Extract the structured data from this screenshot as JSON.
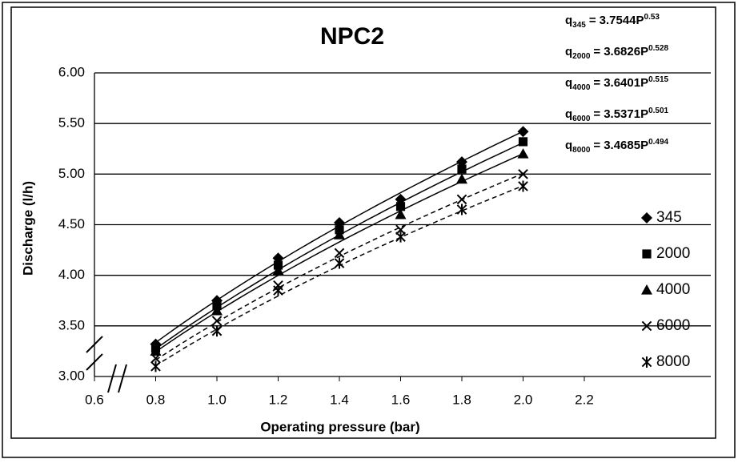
{
  "chart_data": {
    "type": "scatter",
    "title": "NPC2",
    "x_label": "Operating pressure (bar)",
    "y_label": "Discharge (l/h)",
    "x": [
      0.8,
      1.0,
      1.2,
      1.4,
      1.6,
      1.8,
      2.0
    ],
    "xlim": [
      0.6,
      2.2
    ],
    "xticks": [
      0.6,
      0.8,
      {
        "value": 1.0,
        "label": "1.0"
      },
      1.2,
      1.4,
      1.6,
      1.8,
      {
        "value": 2.0,
        "label": "2.0"
      },
      2.2
    ],
    "ylim": [
      3.0,
      6.0
    ],
    "yticks": [
      {
        "value": 3.0,
        "label": "3.00"
      },
      {
        "value": 3.5,
        "label": "3.50"
      },
      {
        "value": 4.0,
        "label": "4.00"
      },
      {
        "value": 4.5,
        "label": "4.50"
      },
      {
        "value": 5.0,
        "label": "5.00"
      },
      {
        "value": 5.5,
        "label": "5.50"
      },
      {
        "value": 6.0,
        "label": "6.00"
      }
    ],
    "grid": true,
    "legend": "right",
    "series": [
      {
        "name": "345",
        "color": "#000000",
        "marker": "diamond",
        "values": [
          3.32,
          3.75,
          4.17,
          4.52,
          4.75,
          5.12,
          5.42
        ]
      },
      {
        "name": "2000",
        "color": "#000000",
        "marker": "square",
        "values": [
          3.28,
          3.7,
          4.1,
          4.45,
          4.68,
          5.05,
          5.32
        ]
      },
      {
        "name": "4000",
        "color": "#000000",
        "marker": "triangle",
        "values": [
          3.25,
          3.65,
          4.05,
          4.4,
          4.6,
          4.95,
          5.2
        ]
      },
      {
        "name": "6000",
        "color": "#000000",
        "marker": "x",
        "values": [
          3.18,
          3.55,
          3.9,
          4.22,
          4.45,
          4.75,
          5.0
        ]
      },
      {
        "name": "8000",
        "color": "#000000",
        "marker": "star",
        "values": [
          3.1,
          3.45,
          3.85,
          4.12,
          4.38,
          4.65,
          4.88
        ]
      }
    ],
    "fits": [
      {
        "symbol": "q",
        "sign": "=",
        "coef": 3.7544,
        "var": "P",
        "exp": 0.53,
        "dashed": false
      },
      {
        "symbol": "q",
        "sign": "=",
        "coef": 3.6826,
        "var": "P",
        "exp": 0.528,
        "dashed": false
      },
      {
        "symbol": "q",
        "sign": "=",
        "coef": 3.6401,
        "var": "P",
        "exp": 0.515,
        "dashed": false
      },
      {
        "symbol": "q",
        "sign": "=",
        "coef": 3.5371,
        "var": "P",
        "exp": 0.501,
        "dashed": true
      },
      {
        "symbol": "q",
        "sign": "=",
        "coef": 3.4685,
        "var": "P",
        "exp": 0.494,
        "dashed": true
      }
    ]
  }
}
